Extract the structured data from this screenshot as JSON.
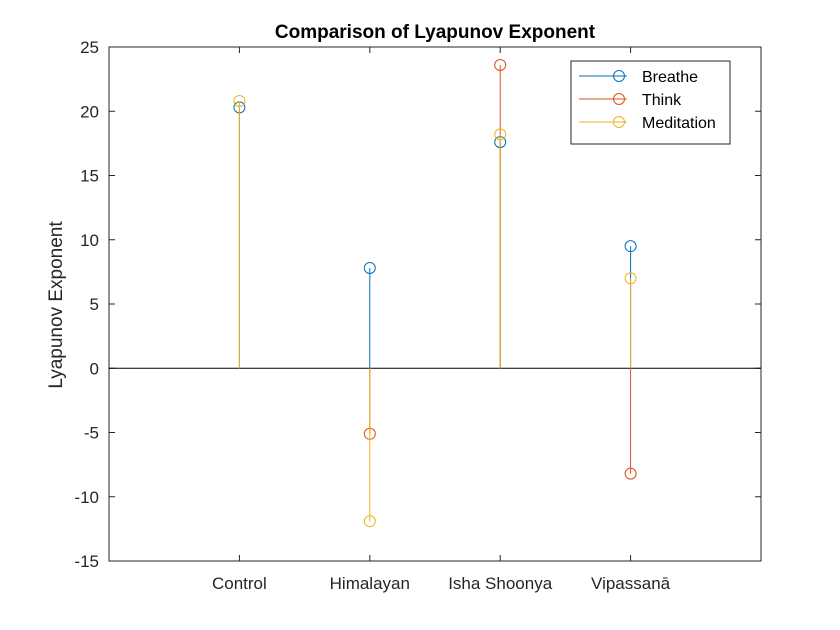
{
  "chart_data": {
    "type": "stem",
    "title": "Comparison of Lyapunov Exponent",
    "xlabel": "",
    "ylabel": "Lyapunov Exponent",
    "categories": [
      "Control",
      "Himalayan",
      "Isha Shoonya",
      "Vipassanā"
    ],
    "ylim": [
      -15,
      25
    ],
    "yticks": [
      -15,
      -10,
      -5,
      0,
      5,
      10,
      15,
      20,
      25
    ],
    "yticks_labels": [
      "-15",
      "-10",
      "-5",
      "0",
      "5",
      "10",
      "15",
      "20",
      "25"
    ],
    "baseline": 0,
    "grid": false,
    "legend_position": "top-right",
    "series": [
      {
        "name": "Breathe",
        "color": "#0072BD",
        "values": [
          20.3,
          7.8,
          17.6,
          9.5
        ]
      },
      {
        "name": "Think",
        "color": "#D95319",
        "values": [
          null,
          -5.1,
          23.6,
          -8.2
        ]
      },
      {
        "name": "Meditation",
        "color": "#EDB120",
        "values": [
          20.8,
          -11.9,
          18.2,
          7.0
        ]
      }
    ]
  }
}
